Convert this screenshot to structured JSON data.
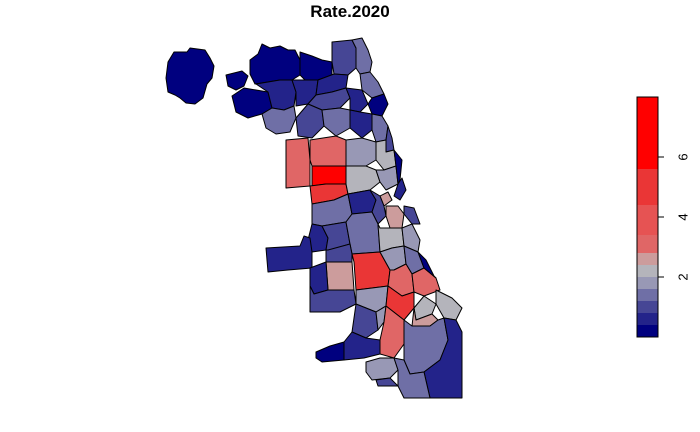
{
  "title": "Rate.2020",
  "legend": {
    "ticks": [
      {
        "label": "2",
        "value": 2
      },
      {
        "label": "4",
        "value": 4
      },
      {
        "label": "6",
        "value": 6
      }
    ],
    "range": [
      0.0,
      8.0
    ],
    "bands": [
      {
        "from": 0.0,
        "to": 0.4,
        "color": "#00007f"
      },
      {
        "from": 0.4,
        "to": 0.8,
        "color": "#23238a"
      },
      {
        "from": 0.8,
        "to": 1.2,
        "color": "#464695"
      },
      {
        "from": 1.2,
        "to": 1.6,
        "color": "#6f6fa6"
      },
      {
        "from": 1.6,
        "to": 2.0,
        "color": "#9898b5"
      },
      {
        "from": 2.0,
        "to": 2.4,
        "color": "#b4b4bb"
      },
      {
        "from": 2.4,
        "to": 2.8,
        "color": "#cc9c9c"
      },
      {
        "from": 2.8,
        "to": 3.4,
        "color": "#e06666"
      },
      {
        "from": 3.4,
        "to": 4.4,
        "color": "#e65353"
      },
      {
        "from": 4.4,
        "to": 5.6,
        "color": "#ea3636"
      },
      {
        "from": 5.6,
        "to": 8.0,
        "color": "#ff0000"
      }
    ]
  },
  "palette": {
    "navy": "#00007f",
    "dark_blue": "#23238a",
    "blue": "#464695",
    "slate": "#6f6fa6",
    "grey_blue": "#9898b5",
    "grey": "#b4b4bb",
    "pink": "#cc9c9c",
    "light_red": "#e06666",
    "red": "#e65353",
    "strong_red": "#ea3636",
    "max_red": "#ff0000"
  }
}
